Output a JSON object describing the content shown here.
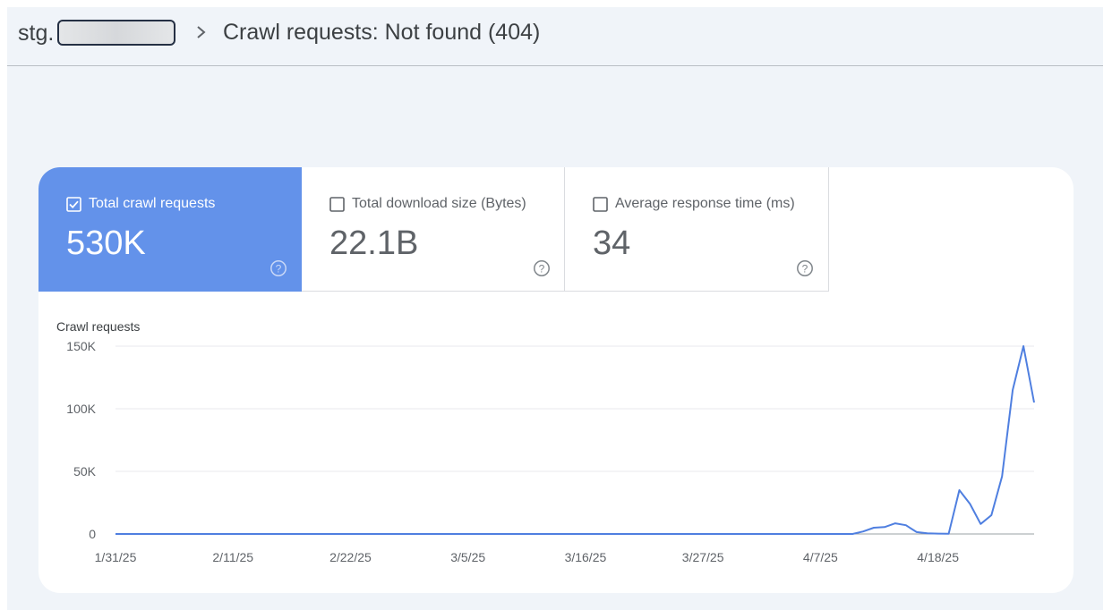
{
  "header": {
    "site_prefix": "stg.",
    "title": "Crawl requests: Not found (404)"
  },
  "metrics": [
    {
      "label": "Total crawl requests",
      "value": "530K",
      "selected": true
    },
    {
      "label": "Total download size (Bytes)",
      "value": "22.1B",
      "selected": false
    },
    {
      "label": "Average response time (ms)",
      "value": "34",
      "selected": false
    }
  ],
  "colors": {
    "accent": "#6392ea",
    "line": "#4f7fe0",
    "background": "#f0f4f9"
  },
  "icons": [
    "chevron-right-icon",
    "checkbox-checked-icon",
    "checkbox-empty-icon",
    "help-icon"
  ],
  "chart_data": {
    "type": "line",
    "title": "",
    "ylabel": "Crawl requests",
    "xlabel": "",
    "ylim": [
      0,
      150000
    ],
    "yticks": [
      0,
      50000,
      100000,
      150000
    ],
    "ytick_labels": [
      "0",
      "50K",
      "100K",
      "150K"
    ],
    "xtick_labels": [
      "1/31/25",
      "2/11/25",
      "2/22/25",
      "3/5/25",
      "3/16/25",
      "3/27/25",
      "4/7/25",
      "4/18/25"
    ],
    "grid": true,
    "series": [
      {
        "values": [
          0,
          0,
          0,
          0,
          0,
          0,
          0,
          0,
          0,
          0,
          0,
          0,
          0,
          0,
          0,
          0,
          0,
          0,
          0,
          0,
          0,
          0,
          0,
          0,
          0,
          0,
          0,
          0,
          0,
          0,
          0,
          0,
          0,
          0,
          0,
          0,
          0,
          0,
          0,
          0,
          0,
          0,
          0,
          0,
          0,
          0,
          0,
          0,
          0,
          0,
          0,
          0,
          0,
          0,
          0,
          0,
          0,
          0,
          0,
          0,
          0,
          0,
          0,
          0,
          0,
          0,
          0,
          0,
          0,
          0,
          2000,
          5000,
          5500,
          8500,
          7000,
          1500,
          500,
          300,
          200,
          35000,
          24000,
          8000,
          15000,
          46000,
          115000,
          150000,
          105000
        ]
      }
    ]
  }
}
